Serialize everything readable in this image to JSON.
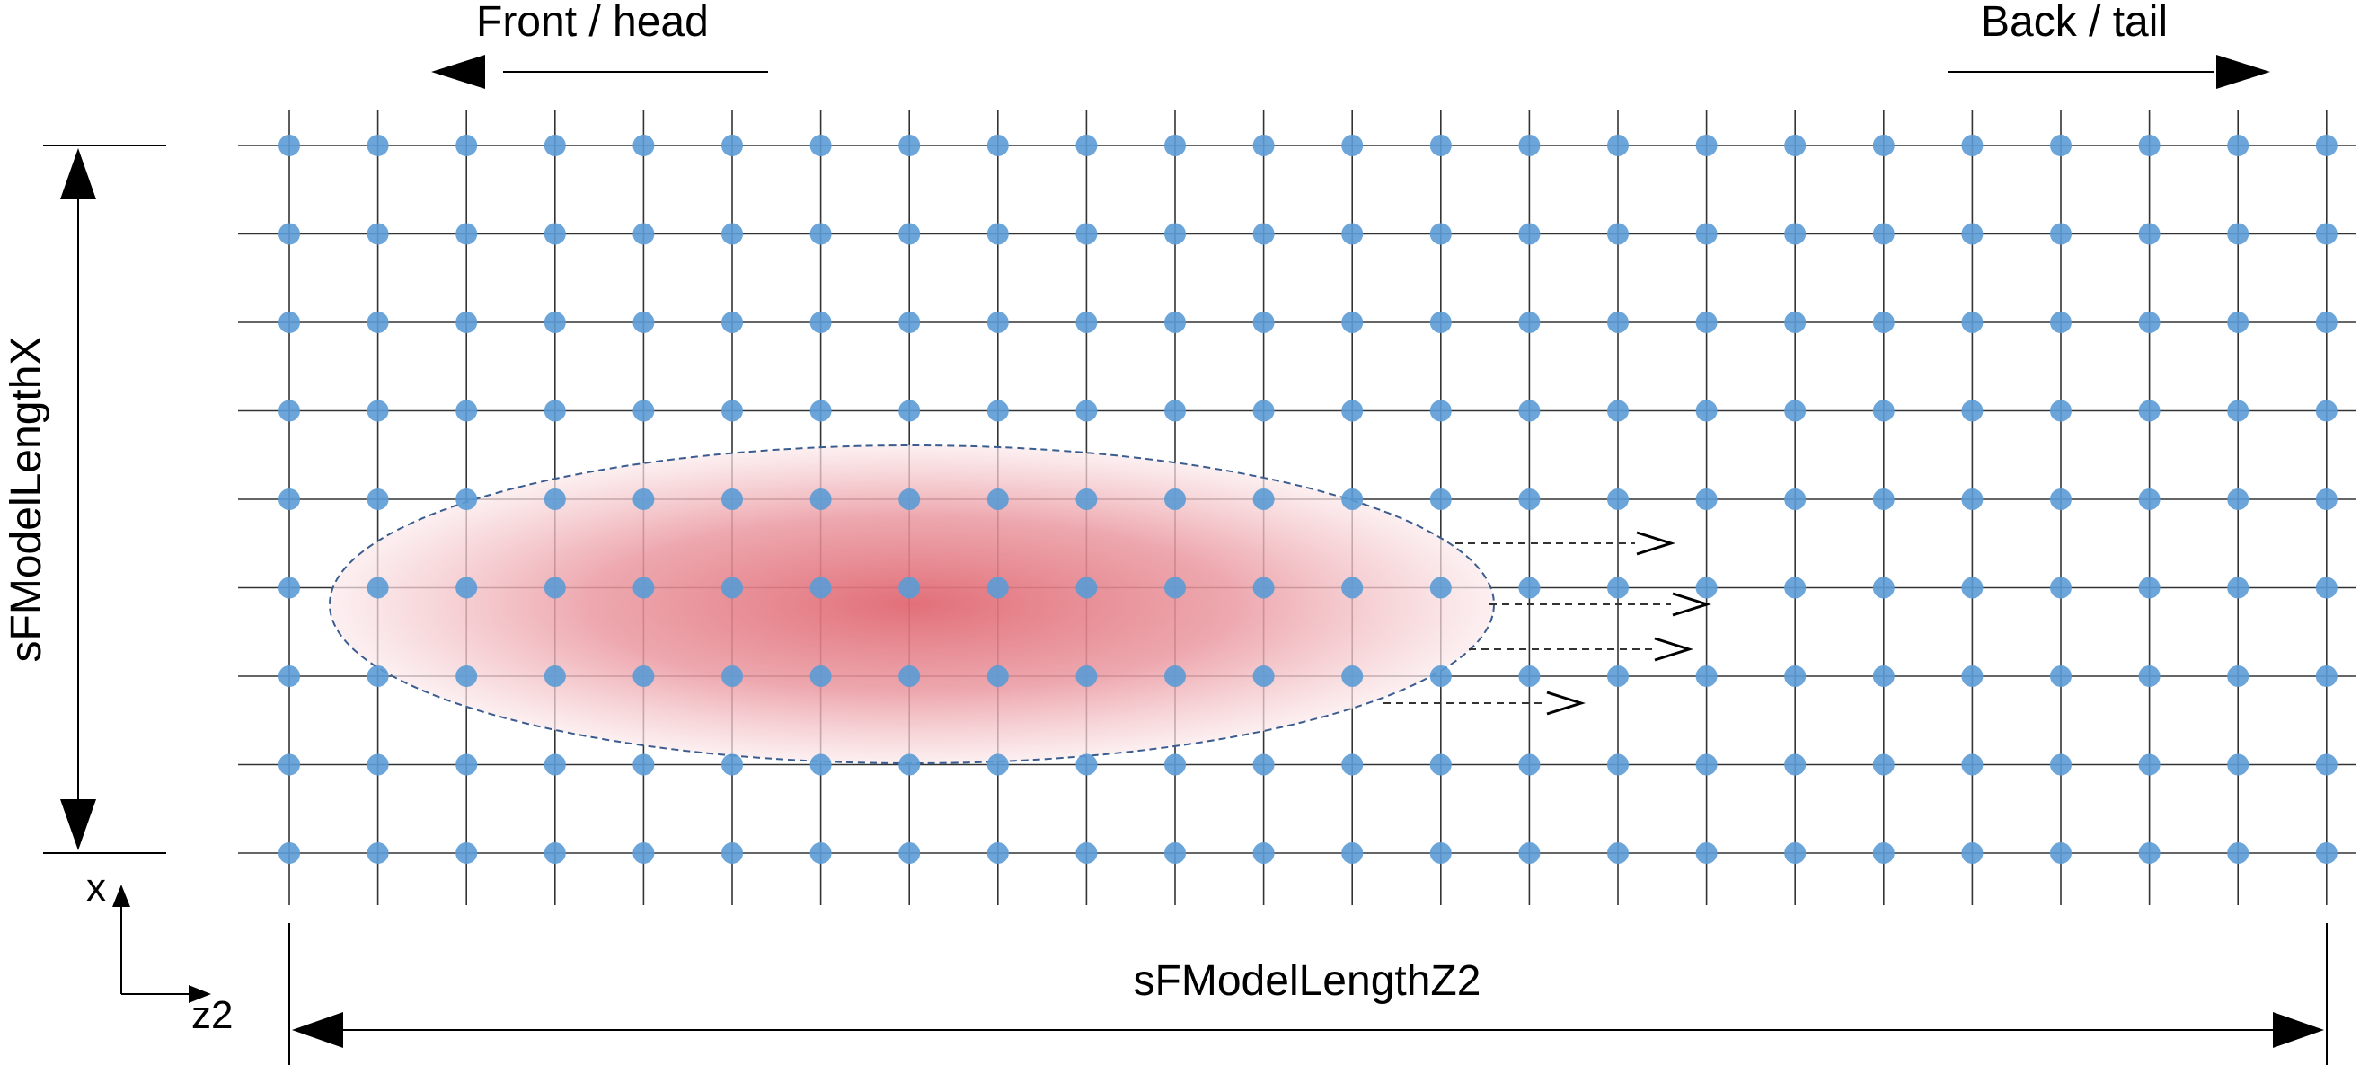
{
  "labels": {
    "front": "Front / head",
    "back": "Back / tail",
    "length_x": "sFModelLengthX",
    "length_z2": "sFModelLengthZ2",
    "axis_x": "x",
    "axis_z2": "z2",
    "velocity": "v"
  },
  "grid": {
    "columns": 24,
    "rows": 9
  },
  "colors": {
    "grid_line": "#333333",
    "node": "#5b9bd5",
    "ellipse_core": "#e06872",
    "ellipse_outline": "#3b5c8f",
    "arrow": "#000000"
  }
}
